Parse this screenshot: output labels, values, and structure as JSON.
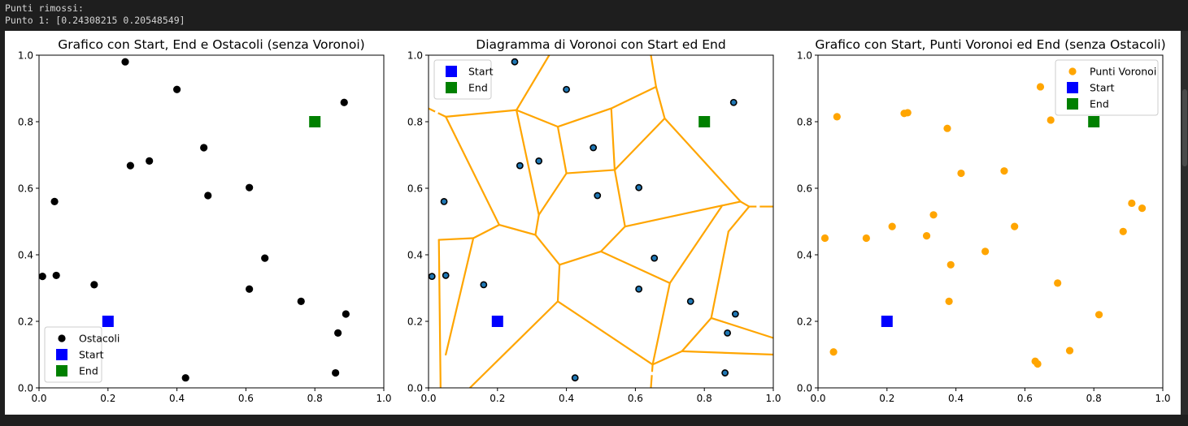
{
  "console": {
    "line1": "Punti rimossi:",
    "line2": "Punto 1: [0.24308215 0.20548549]"
  },
  "colors": {
    "obstacle": "#000000",
    "start": "#0000ff",
    "end": "#008000",
    "voronoi": "#ffa500",
    "voronoi_site": "#1f77b4"
  },
  "chart_data": [
    {
      "type": "scatter",
      "title": "Grafico con Start, End e Ostacoli (senza Voronoi)",
      "xlim": [
        0,
        1
      ],
      "ylim": [
        0,
        1
      ],
      "xticks": [
        "0.0",
        "0.2",
        "0.4",
        "0.6",
        "0.8",
        "1.0"
      ],
      "yticks": [
        "0.0",
        "0.2",
        "0.4",
        "0.6",
        "0.8",
        "1.0"
      ],
      "legend_position": "lower-left",
      "legend": [
        "Ostacoli",
        "Start",
        "End"
      ],
      "obstacles": [
        [
          0.01,
          0.335
        ],
        [
          0.045,
          0.56
        ],
        [
          0.05,
          0.338
        ],
        [
          0.16,
          0.31
        ],
        [
          0.25,
          0.98
        ],
        [
          0.265,
          0.668
        ],
        [
          0.32,
          0.682
        ],
        [
          0.4,
          0.897
        ],
        [
          0.425,
          0.03
        ],
        [
          0.478,
          0.722
        ],
        [
          0.49,
          0.578
        ],
        [
          0.61,
          0.602
        ],
        [
          0.61,
          0.297
        ],
        [
          0.655,
          0.39
        ],
        [
          0.76,
          0.26
        ],
        [
          0.86,
          0.045
        ],
        [
          0.867,
          0.165
        ],
        [
          0.885,
          0.858
        ],
        [
          0.89,
          0.222
        ]
      ],
      "start": [
        0.2,
        0.2
      ],
      "end": [
        0.8,
        0.8
      ]
    },
    {
      "type": "scatter",
      "title": "Diagramma di Voronoi con Start ed End",
      "xlim": [
        0,
        1
      ],
      "ylim": [
        0,
        1
      ],
      "xticks": [
        "0.0",
        "0.2",
        "0.4",
        "0.6",
        "0.8",
        "1.0"
      ],
      "yticks": [
        "0.0",
        "0.2",
        "0.4",
        "0.6",
        "0.8",
        "1.0"
      ],
      "legend_position": "upper-left",
      "legend": [
        "Start",
        "End"
      ],
      "sites": [
        [
          0.01,
          0.335
        ],
        [
          0.045,
          0.56
        ],
        [
          0.05,
          0.338
        ],
        [
          0.16,
          0.31
        ],
        [
          0.25,
          0.98
        ],
        [
          0.265,
          0.668
        ],
        [
          0.32,
          0.682
        ],
        [
          0.4,
          0.897
        ],
        [
          0.425,
          0.03
        ],
        [
          0.478,
          0.722
        ],
        [
          0.49,
          0.578
        ],
        [
          0.61,
          0.602
        ],
        [
          0.61,
          0.297
        ],
        [
          0.655,
          0.39
        ],
        [
          0.76,
          0.26
        ],
        [
          0.86,
          0.045
        ],
        [
          0.867,
          0.165
        ],
        [
          0.885,
          0.858
        ],
        [
          0.89,
          0.222
        ]
      ],
      "ridges": [
        [
          [
            0.05,
            0.815
          ],
          [
            0.255,
            0.835
          ]
        ],
        [
          [
            0.05,
            0.815
          ],
          [
            0.0,
            0.84
          ]
        ],
        [
          [
            0.05,
            0.815
          ],
          [
            0.205,
            0.49
          ]
        ],
        [
          [
            0.255,
            0.835
          ],
          [
            0.35,
            1.0
          ]
        ],
        [
          [
            0.255,
            0.835
          ],
          [
            0.375,
            0.785
          ]
        ],
        [
          [
            0.255,
            0.835
          ],
          [
            0.32,
            0.52
          ]
        ],
        [
          [
            0.375,
            0.785
          ],
          [
            0.53,
            0.84
          ]
        ],
        [
          [
            0.53,
            0.84
          ],
          [
            0.66,
            0.905
          ]
        ],
        [
          [
            0.66,
            0.905
          ],
          [
            0.645,
            1.0
          ]
        ],
        [
          [
            0.66,
            0.905
          ],
          [
            0.685,
            0.81
          ]
        ],
        [
          [
            0.53,
            0.84
          ],
          [
            0.54,
            0.655
          ]
        ],
        [
          [
            0.375,
            0.785
          ],
          [
            0.4,
            0.645
          ]
        ],
        [
          [
            0.4,
            0.645
          ],
          [
            0.54,
            0.655
          ]
        ],
        [
          [
            0.4,
            0.645
          ],
          [
            0.32,
            0.52
          ]
        ],
        [
          [
            0.32,
            0.52
          ],
          [
            0.31,
            0.46
          ]
        ],
        [
          [
            0.205,
            0.49
          ],
          [
            0.31,
            0.46
          ]
        ],
        [
          [
            0.205,
            0.49
          ],
          [
            0.13,
            0.45
          ]
        ],
        [
          [
            0.13,
            0.45
          ],
          [
            0.03,
            0.445
          ]
        ],
        [
          [
            0.03,
            0.445
          ],
          [
            0.035,
            0.0
          ]
        ],
        [
          [
            0.13,
            0.45
          ],
          [
            0.05,
            0.1
          ]
        ],
        [
          [
            0.31,
            0.46
          ],
          [
            0.38,
            0.37
          ]
        ],
        [
          [
            0.38,
            0.37
          ],
          [
            0.5,
            0.41
          ]
        ],
        [
          [
            0.38,
            0.37
          ],
          [
            0.375,
            0.26
          ]
        ],
        [
          [
            0.375,
            0.26
          ],
          [
            0.12,
            0.0
          ]
        ],
        [
          [
            0.375,
            0.26
          ],
          [
            0.65,
            0.07
          ]
        ],
        [
          [
            0.54,
            0.655
          ],
          [
            0.685,
            0.81
          ]
        ],
        [
          [
            0.54,
            0.655
          ],
          [
            0.57,
            0.485
          ]
        ],
        [
          [
            0.57,
            0.485
          ],
          [
            0.5,
            0.41
          ]
        ],
        [
          [
            0.57,
            0.485
          ],
          [
            0.905,
            0.56
          ]
        ],
        [
          [
            0.5,
            0.41
          ],
          [
            0.7,
            0.315
          ]
        ],
        [
          [
            0.7,
            0.315
          ],
          [
            0.65,
            0.07
          ]
        ],
        [
          [
            0.7,
            0.315
          ],
          [
            0.85,
            0.545
          ]
        ],
        [
          [
            0.685,
            0.81
          ],
          [
            0.905,
            0.56
          ]
        ],
        [
          [
            0.905,
            0.56
          ],
          [
            0.93,
            0.545
          ]
        ],
        [
          [
            0.93,
            0.545
          ],
          [
            0.87,
            0.47
          ]
        ],
        [
          [
            0.87,
            0.47
          ],
          [
            0.82,
            0.21
          ]
        ],
        [
          [
            0.82,
            0.21
          ],
          [
            0.735,
            0.11
          ]
        ],
        [
          [
            0.735,
            0.11
          ],
          [
            0.65,
            0.07
          ]
        ],
        [
          [
            0.735,
            0.11
          ],
          [
            1.0,
            0.1
          ]
        ],
        [
          [
            0.82,
            0.21
          ],
          [
            1.0,
            0.15
          ]
        ],
        [
          [
            0.65,
            0.07
          ],
          [
            0.645,
            0.0
          ]
        ],
        [
          [
            0.93,
            0.545
          ],
          [
            1.0,
            0.545
          ]
        ]
      ],
      "dashed_ridges": [
        [
          [
            0.0,
            0.84
          ],
          [
            0.05,
            0.815
          ]
        ],
        [
          [
            0.93,
            0.545
          ],
          [
            1.0,
            0.545
          ]
        ],
        [
          [
            0.65,
            0.07
          ],
          [
            0.645,
            0.0
          ]
        ]
      ],
      "start": [
        0.2,
        0.2
      ],
      "end": [
        0.8,
        0.8
      ]
    },
    {
      "type": "scatter",
      "title": "Grafico con Start, Punti Voronoi ed End (senza Ostacoli)",
      "xlim": [
        0,
        1
      ],
      "ylim": [
        0,
        1
      ],
      "xticks": [
        "0.0",
        "0.2",
        "0.4",
        "0.6",
        "0.8",
        "1.0"
      ],
      "yticks": [
        "0.0",
        "0.2",
        "0.4",
        "0.6",
        "0.8",
        "1.0"
      ],
      "legend_position": "upper-right",
      "legend": [
        "Punti Voronoi",
        "Start",
        "End"
      ],
      "voronoi_points": [
        [
          0.02,
          0.45
        ],
        [
          0.045,
          0.108
        ],
        [
          0.055,
          0.815
        ],
        [
          0.14,
          0.45
        ],
        [
          0.215,
          0.485
        ],
        [
          0.25,
          0.825
        ],
        [
          0.26,
          0.827
        ],
        [
          0.315,
          0.457
        ],
        [
          0.335,
          0.52
        ],
        [
          0.375,
          0.78
        ],
        [
          0.38,
          0.26
        ],
        [
          0.385,
          0.37
        ],
        [
          0.415,
          0.645
        ],
        [
          0.485,
          0.41
        ],
        [
          0.54,
          0.652
        ],
        [
          0.57,
          0.485
        ],
        [
          0.63,
          0.08
        ],
        [
          0.637,
          0.072
        ],
        [
          0.645,
          0.905
        ],
        [
          0.675,
          0.805
        ],
        [
          0.695,
          0.315
        ],
        [
          0.73,
          0.112
        ],
        [
          0.815,
          0.22
        ],
        [
          0.885,
          0.47
        ],
        [
          0.91,
          0.555
        ],
        [
          0.94,
          0.54
        ]
      ],
      "start": [
        0.2,
        0.2
      ],
      "end": [
        0.8,
        0.8
      ]
    }
  ]
}
